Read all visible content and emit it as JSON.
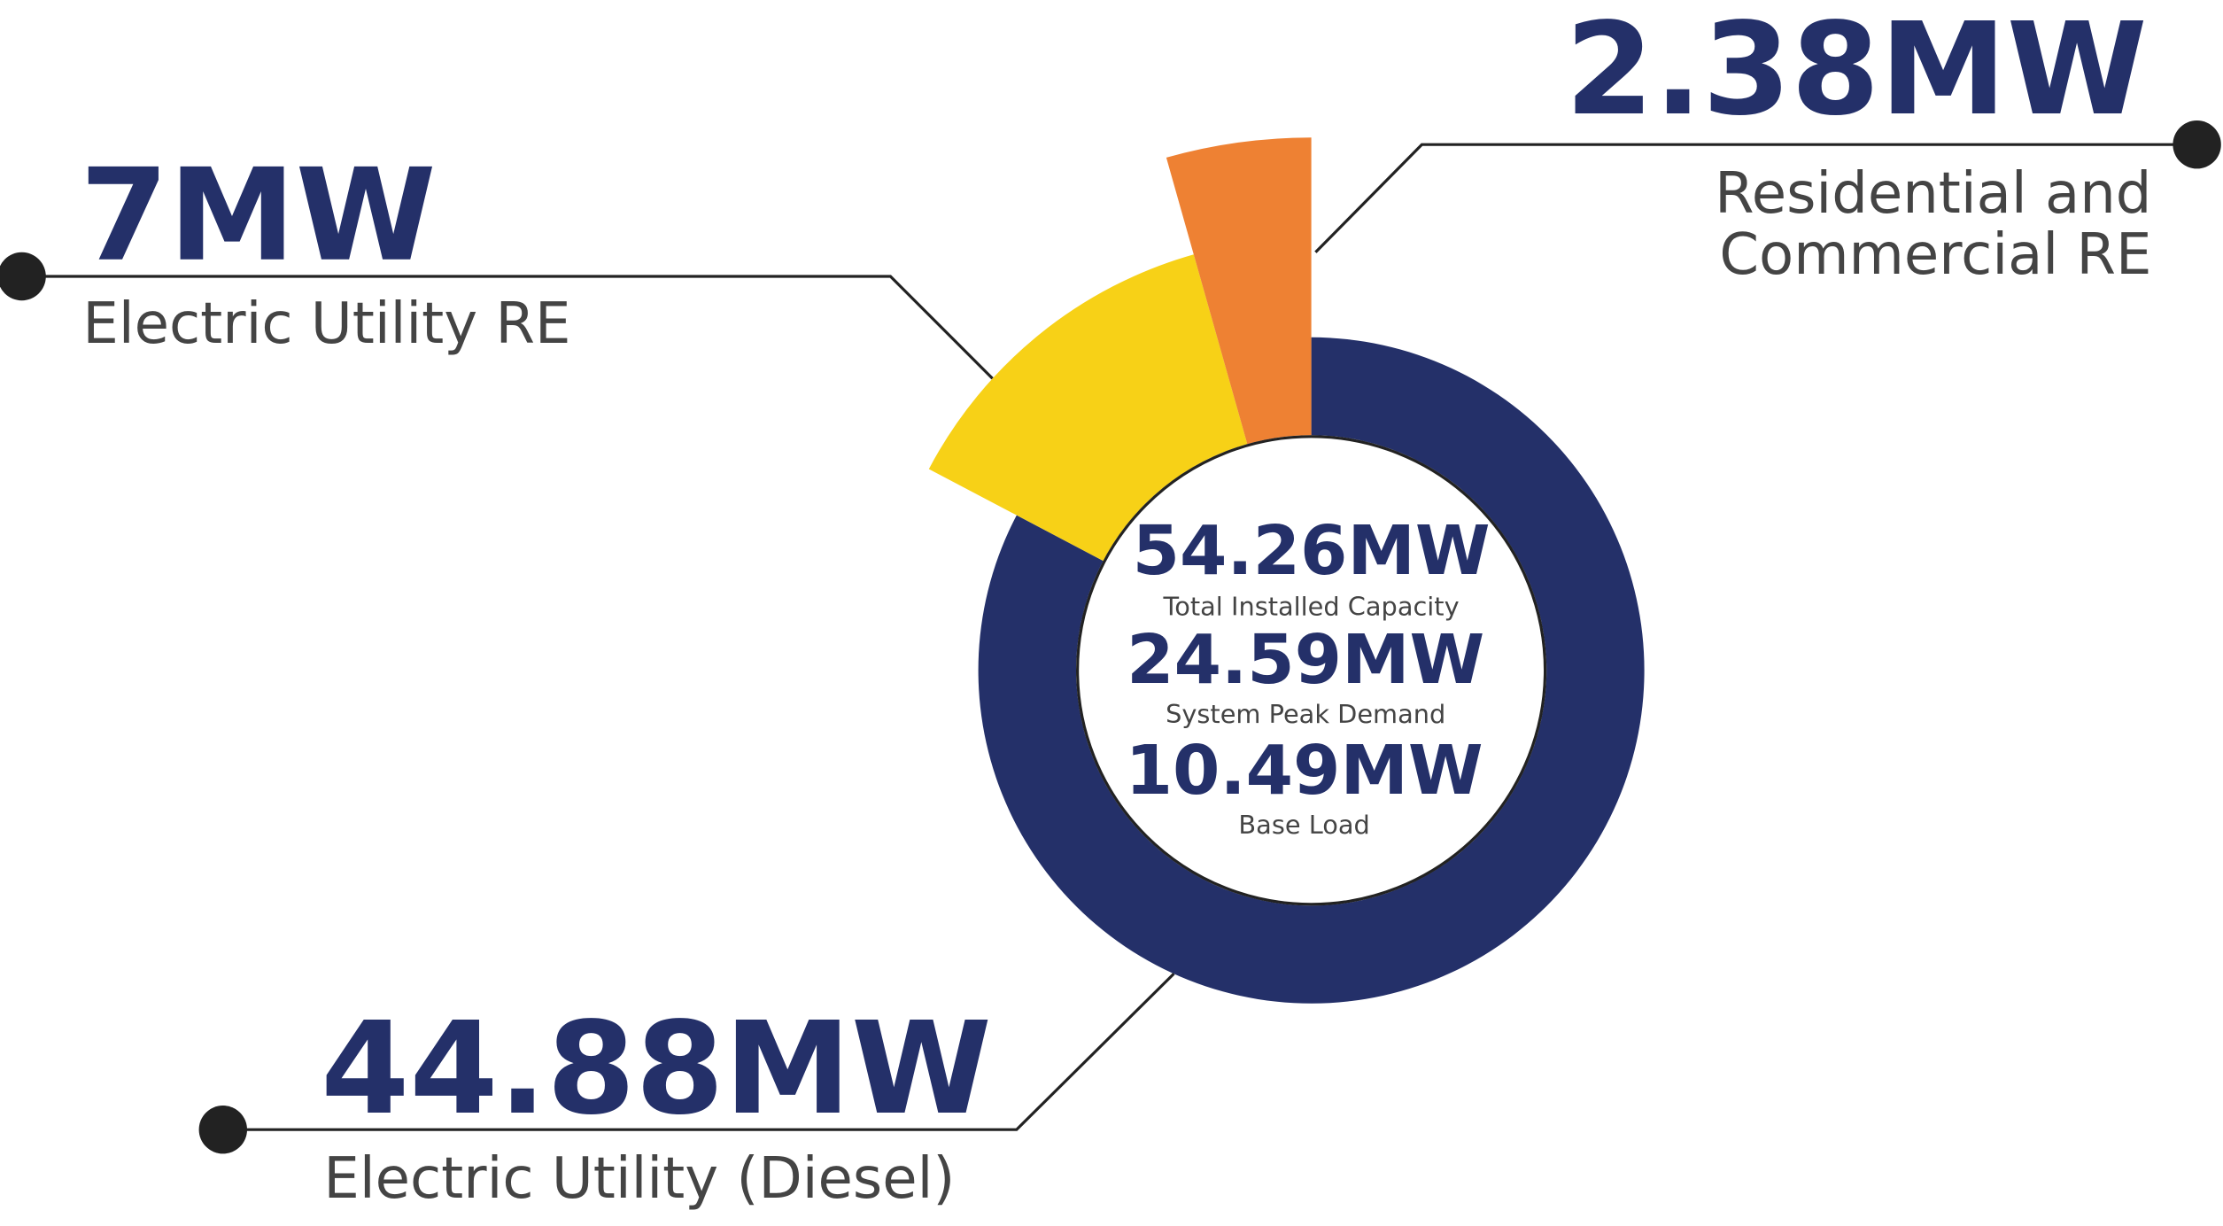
{
  "chart_data": {
    "type": "pie",
    "categories": [
      "Electric Utility (Diesel)",
      "Electric Utility RE",
      "Residential and\nCommercial RE"
    ],
    "values": [
      44.88,
      7,
      2.38
    ],
    "value_labels": [
      "44.88MW",
      "7MW",
      "2.38MW"
    ],
    "colors": [
      "#243069",
      "#f7d117",
      "#ee8133"
    ],
    "center_stats": [
      {
        "label": "54.26MW",
        "caption": "Total Installed Capacity"
      },
      {
        "label": "24.59MW",
        "caption": "System Peak Demand"
      },
      {
        "label": "10.49MW",
        "caption": "Base Load"
      }
    ]
  }
}
